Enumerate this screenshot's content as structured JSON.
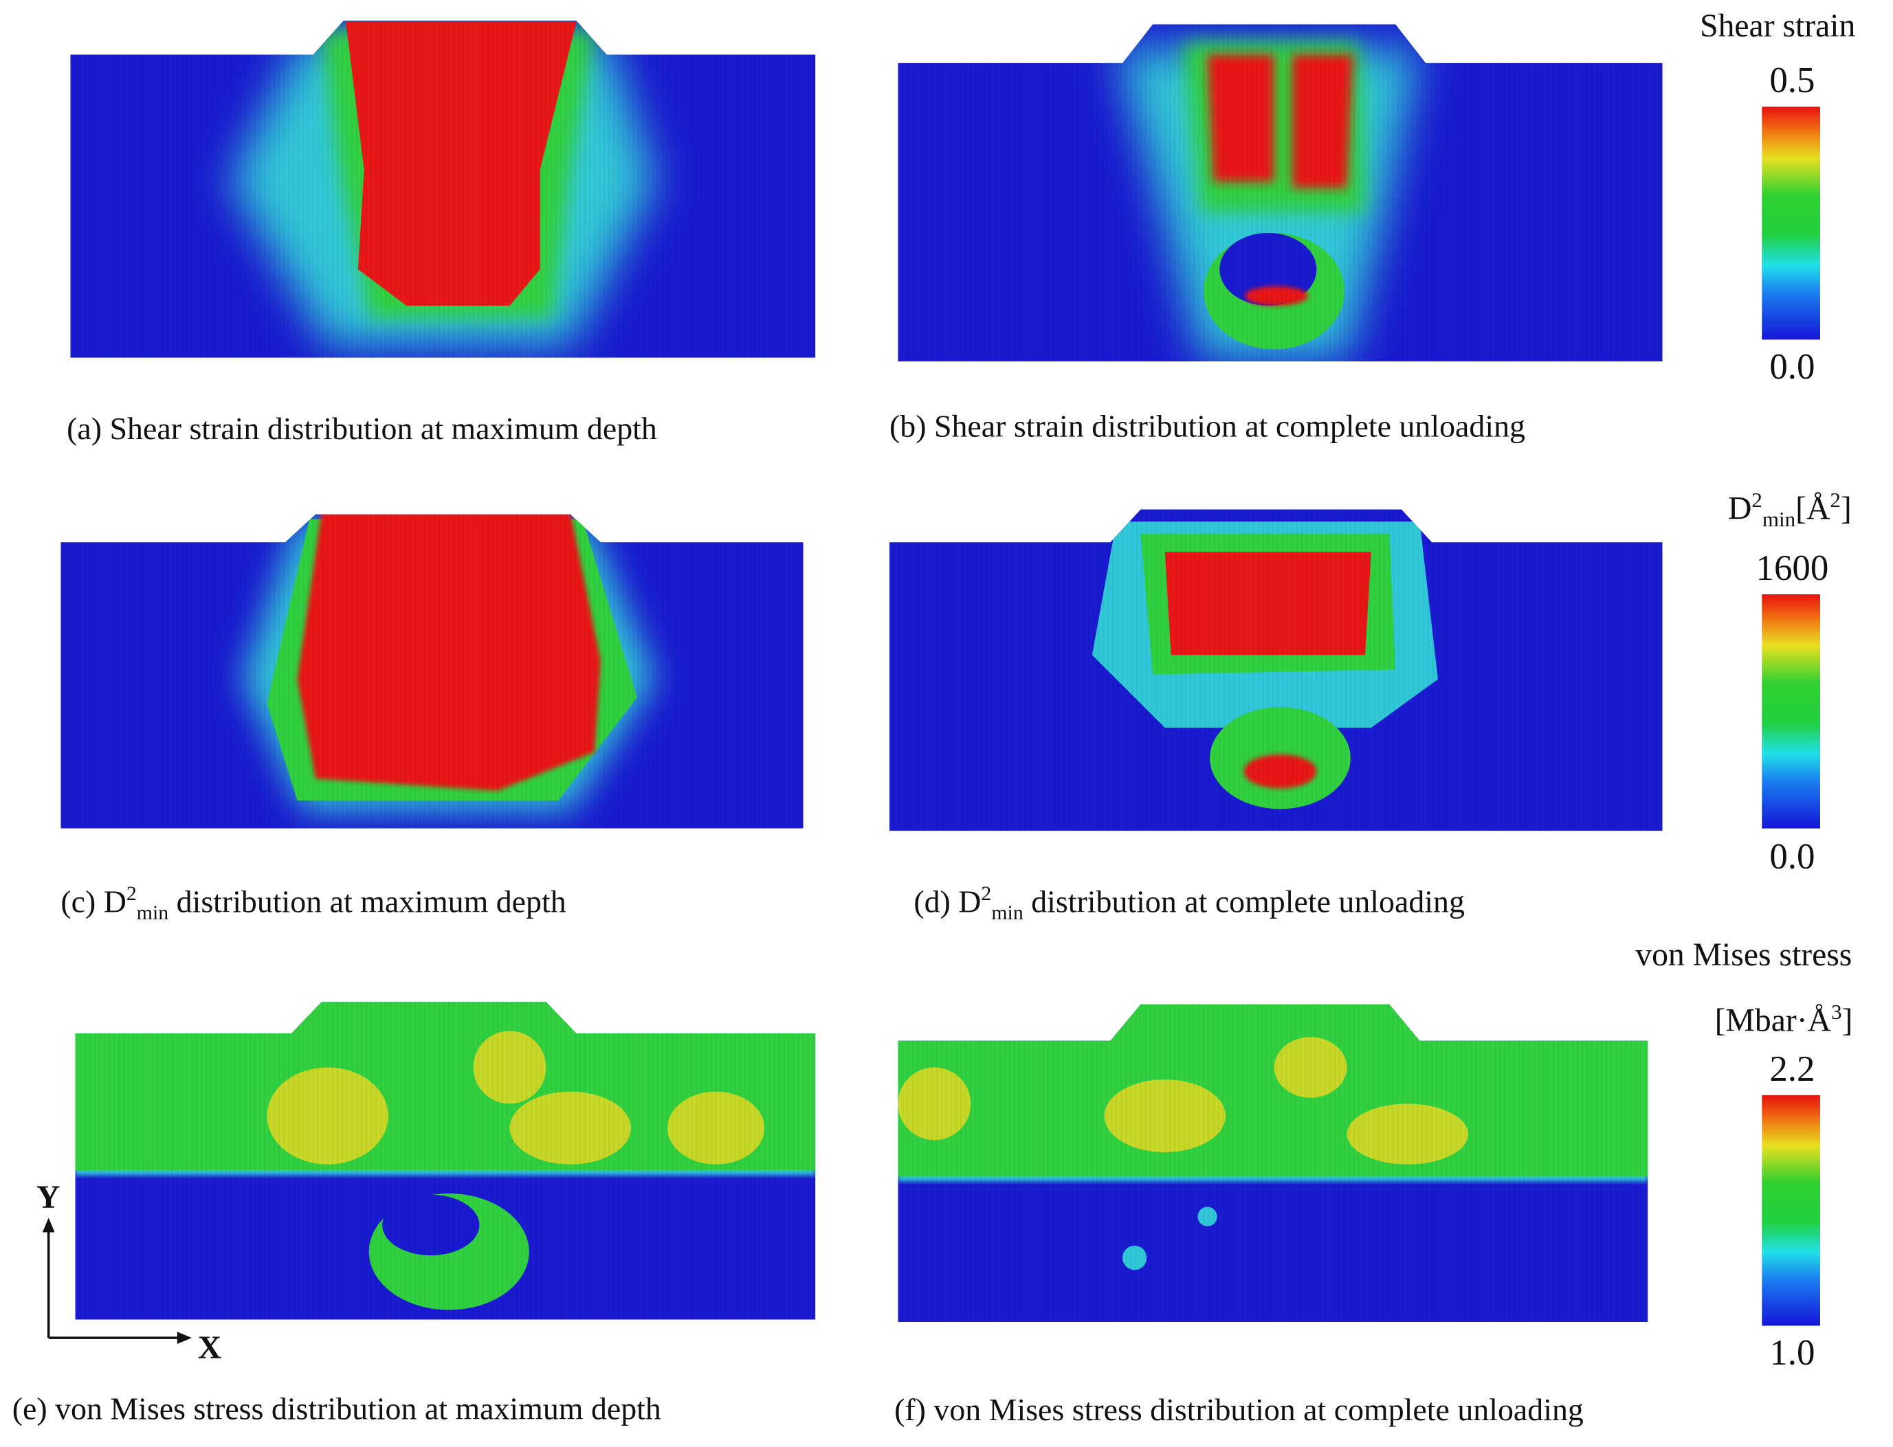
{
  "panels": [
    {
      "caption": [
        {
          "text": "(a) Shear strain distribution at maximum depth"
        }
      ]
    },
    {
      "caption": [
        {
          "text": "(b) Shear strain distribution at complete unloading"
        }
      ]
    },
    {
      "caption": [
        {
          "text": "(c)  D"
        },
        {
          "sup": "2"
        },
        {
          "sub": "min"
        },
        {
          "text": " distribution at maximum depth"
        }
      ]
    },
    {
      "caption": [
        {
          "text": "(d) D"
        },
        {
          "sup": "2"
        },
        {
          "sub": "min"
        },
        {
          "text": " distribution at complete unloading"
        }
      ]
    },
    {
      "caption": [
        {
          "text": "(e) von Mises stress distribution at maximum depth"
        }
      ]
    },
    {
      "caption": [
        {
          "text": "(f) von Mises stress distribution at complete unloading"
        }
      ]
    }
  ],
  "colorbars": [
    {
      "title": [
        {
          "text": "Shear strain"
        }
      ],
      "max": 0.5,
      "min": {
        "value": 0,
        "label": "0.0"
      }
    },
    {
      "title": [
        {
          "text": "D"
        },
        {
          "sup": "2"
        },
        {
          "sub": "min"
        },
        {
          "text": "[Å"
        },
        {
          "sup": "2"
        },
        {
          "text": "]"
        }
      ],
      "max": 1600,
      "min": {
        "value": 0,
        "label": "0.0"
      }
    },
    {
      "title": [
        {
          "text": "von Mises stress"
        }
      ],
      "subtitle": [
        {
          "text": "[Mbar·Å"
        },
        {
          "sup": "3"
        },
        {
          "text": "]"
        }
      ],
      "max": 2.2,
      "min": {
        "value": 1,
        "label": "1.0"
      }
    }
  ],
  "axes": {
    "y": "Y",
    "x": "X"
  }
}
